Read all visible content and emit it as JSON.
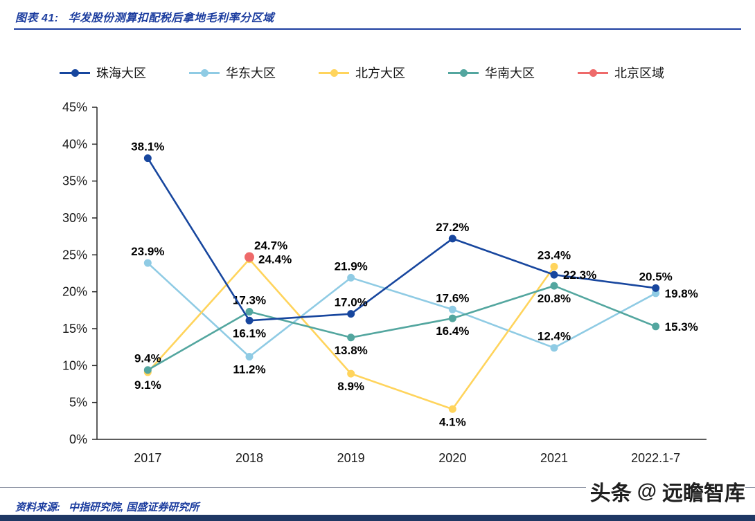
{
  "header": {
    "figure_label": "图表 41:",
    "figure_title": "华发股份测算扣配税后拿地毛利率分区域"
  },
  "footer": {
    "source_label": "资料来源:",
    "source_text": "中指研究院, 国盛证券研究所"
  },
  "watermark": {
    "prefix": "头条",
    "at_symbol": "@",
    "name": "远瞻智库"
  },
  "colors": {
    "title_blue": "#1C3D9F",
    "axis": "#262626",
    "bottom_bar": "#1F3864",
    "divider": "#8D93A3",
    "watermark_text": "#1F1F1F"
  },
  "chart_data": {
    "type": "line",
    "title": "华发股份测算扣配税后拿地毛利率分区域",
    "categories": [
      "2017",
      "2018",
      "2019",
      "2020",
      "2021",
      "2022.1-7"
    ],
    "xlabel": "",
    "ylabel": "",
    "ylim": [
      0,
      45
    ],
    "ytick_step": 5,
    "ytick_suffix": "%",
    "grid": false,
    "legend_position": "top",
    "series": [
      {
        "name": "珠海大区",
        "color": "#17469E",
        "values": [
          38.1,
          16.1,
          17.0,
          27.2,
          22.3,
          20.5
        ],
        "label_pos": [
          "top",
          "bottom",
          "top",
          "top",
          "right",
          "top"
        ]
      },
      {
        "name": "华东大区",
        "color": "#8FCBE4",
        "values": [
          23.9,
          11.2,
          21.9,
          17.6,
          12.4,
          19.8
        ],
        "label_pos": [
          "top",
          "bottom",
          "top",
          "top",
          "top",
          "right"
        ]
      },
      {
        "name": "北方大区",
        "color": "#FFD45C",
        "values": [
          9.1,
          24.4,
          8.9,
          4.1,
          23.4,
          null
        ],
        "label_pos": [
          "bottom",
          "right",
          "bottom",
          "bottom",
          "top",
          null
        ]
      },
      {
        "name": "华南大区",
        "color": "#53A69F",
        "values": [
          9.4,
          17.3,
          13.8,
          16.4,
          20.8,
          15.3
        ],
        "label_pos": [
          "top",
          "top",
          "bottom",
          "bottom",
          "bottom",
          "right"
        ]
      },
      {
        "name": "北京区域",
        "color": "#EE6A6A",
        "marker_r": 7,
        "values": [
          null,
          24.7,
          null,
          null,
          null,
          null
        ],
        "label_pos": [
          null,
          "top-right",
          null,
          null,
          null,
          null
        ]
      }
    ],
    "paint_order": [
      1,
      2,
      3,
      0,
      4
    ]
  }
}
